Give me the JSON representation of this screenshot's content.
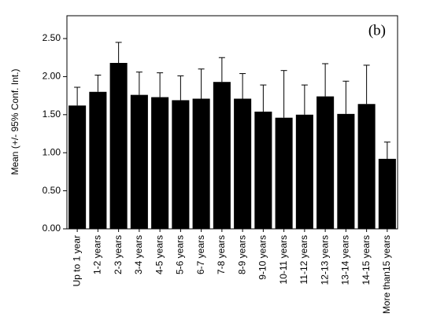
{
  "chart_data": {
    "type": "bar",
    "y_label": "Mean (+/- 95% Conf. Int.)",
    "annotation": "(b)",
    "categories": [
      "Up to 1 year",
      "1-2 years",
      "2-3 years",
      "3-4 years",
      "4-5 years",
      "5-6 years",
      "6-7 years",
      "7-8 years",
      "8-9 years",
      "9-10 years",
      "10-11 years",
      "11-12 years",
      "12-13 years",
      "13-14 years",
      "14-15 years",
      "More than15 years"
    ],
    "values": [
      1.62,
      1.8,
      2.18,
      1.76,
      1.73,
      1.69,
      1.71,
      1.93,
      1.71,
      1.54,
      1.46,
      1.5,
      1.74,
      1.51,
      1.64,
      0.92
    ],
    "errors": [
      0.24,
      0.22,
      0.27,
      0.3,
      0.32,
      0.32,
      0.39,
      0.32,
      0.33,
      0.35,
      0.62,
      0.39,
      0.43,
      0.43,
      0.51,
      0.22
    ],
    "color": "#000000",
    "ylim": [
      0,
      2.8
    ],
    "yticks": [
      {
        "value": 0,
        "label": "0.00"
      },
      {
        "value": 0.5,
        "label": "0.50"
      },
      {
        "value": 1,
        "label": "1.00"
      },
      {
        "value": 1.5,
        "label": "1.50"
      },
      {
        "value": 2,
        "label": "2.00"
      },
      {
        "value": 2.5,
        "label": "2.50"
      }
    ]
  }
}
